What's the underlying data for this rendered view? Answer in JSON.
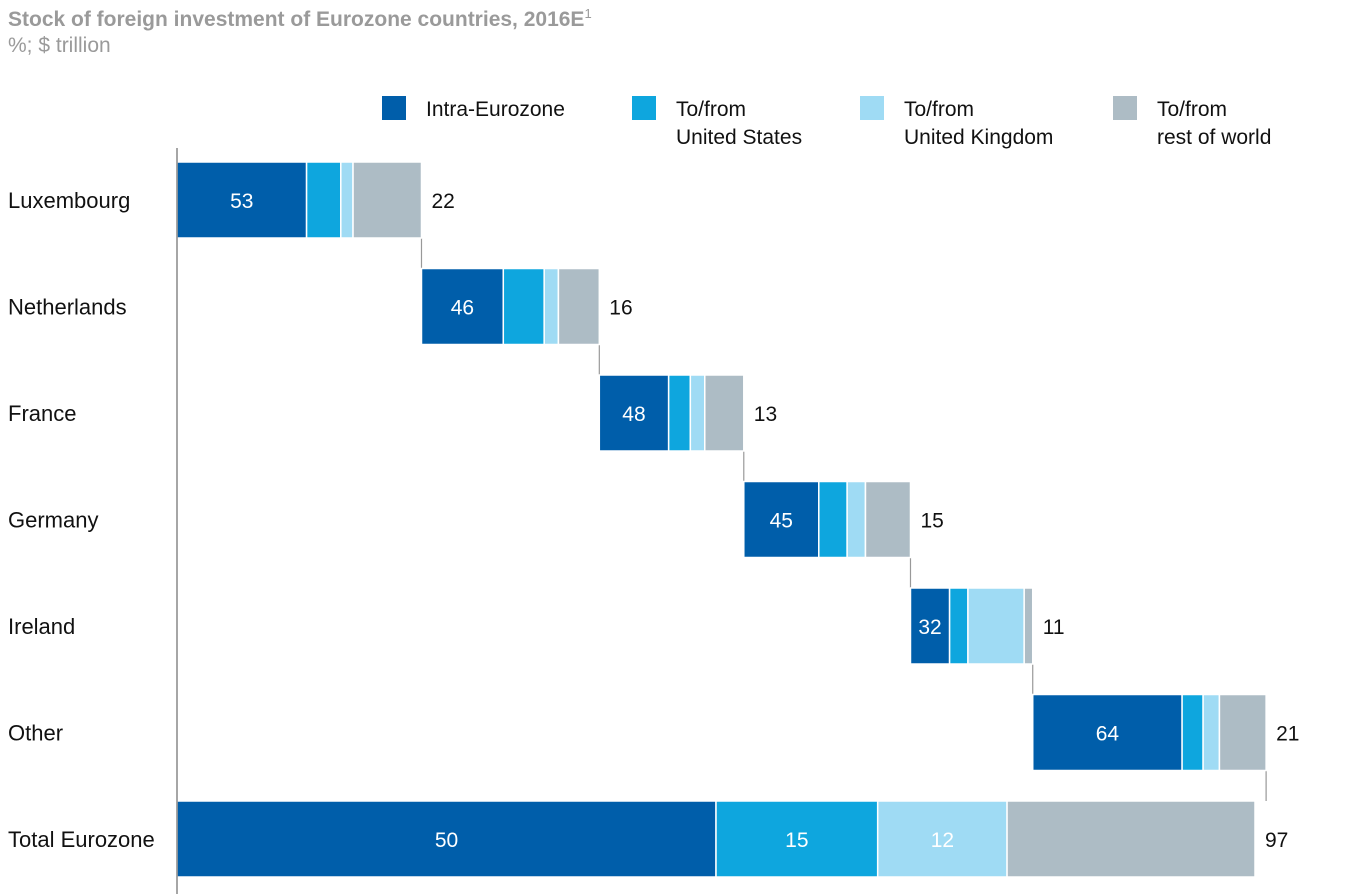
{
  "title": "Stock of foreign investment of Eurozone countries, 2016E",
  "title_footnote": "1",
  "subtitle": "%; $ trillion",
  "chart_data": {
    "type": "bar",
    "orientation": "horizontal-waterfall-stacked",
    "legend_position": "top",
    "series": [
      {
        "name": "Intra-Eurozone",
        "lines": [
          "Intra-Eurozone"
        ],
        "color": "#005eaa"
      },
      {
        "name": "To/from United States",
        "lines": [
          "To/from",
          "United States"
        ],
        "color": "#0ea6de"
      },
      {
        "name": "To/from United Kingdom",
        "lines": [
          "To/from",
          "United Kingdom"
        ],
        "color": "#9fdbf4"
      },
      {
        "name": "To/from rest of world",
        "lines": [
          "To/from",
          "rest of world"
        ],
        "color": "#adbcc5"
      }
    ],
    "rows": [
      {
        "category": "Luxembourg",
        "total": 22,
        "shares": [
          53,
          14,
          5,
          28
        ],
        "labels": [
          "53",
          "",
          "",
          ""
        ]
      },
      {
        "category": "Netherlands",
        "total": 16,
        "shares": [
          46,
          23,
          8,
          23
        ],
        "labels": [
          "46",
          "",
          "",
          ""
        ]
      },
      {
        "category": "France",
        "total": 13,
        "shares": [
          48,
          15,
          10,
          27
        ],
        "labels": [
          "48",
          "",
          "",
          ""
        ]
      },
      {
        "category": "Germany",
        "total": 15,
        "shares": [
          45,
          17,
          11,
          27
        ],
        "labels": [
          "45",
          "",
          "",
          ""
        ]
      },
      {
        "category": "Ireland",
        "total": 11,
        "shares": [
          32,
          15,
          46,
          7
        ],
        "labels": [
          "32",
          "",
          "",
          ""
        ]
      },
      {
        "category": "Other",
        "total": 21,
        "shares": [
          64,
          9,
          7,
          20
        ],
        "labels": [
          "64",
          "",
          "",
          ""
        ]
      },
      {
        "category": "Total Eurozone",
        "total": 97,
        "shares": [
          50,
          15,
          12,
          23
        ],
        "labels": [
          "50",
          "15",
          "12",
          ""
        ],
        "is_total": true
      }
    ]
  }
}
